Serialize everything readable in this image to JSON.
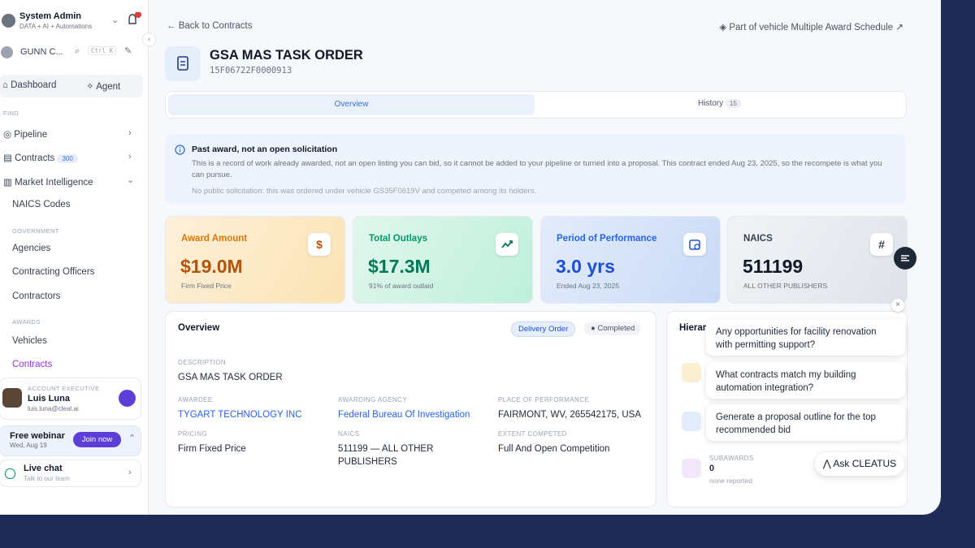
{
  "sidebar": {
    "user": {
      "name": "System Admin",
      "subtitle": "DATA + AI + Automations"
    },
    "org": {
      "name": "GUNN C...",
      "shortcut": "Ctrl K"
    },
    "tabs": [
      "Dashboard",
      "Agent"
    ],
    "find_label": "FIND",
    "nav": [
      {
        "label": "Pipeline"
      },
      {
        "label": "Contracts",
        "badge": "300"
      },
      {
        "label": "Market Intelligence"
      },
      {
        "label": "NAICS Codes"
      }
    ],
    "government_label": "GOVERNMENT",
    "government": [
      "Agencies",
      "Contracting Officers",
      "Contractors"
    ],
    "awards_label": "AWARDS",
    "awards": [
      "Vehicles",
      "Contracts"
    ],
    "executive": {
      "label": "ACCOUNT EXECUTIVE",
      "name": "Luis Luna",
      "email": "luis.luna@cleat.ai"
    },
    "webinar": {
      "title": "Free webinar",
      "date": "Wed, Aug 19",
      "button": "Join now"
    },
    "chat": {
      "title": "Live chat",
      "subtitle": "Talk to our team"
    }
  },
  "header": {
    "back": "Back to Contracts",
    "vehicle_link": "Part of vehicle Multiple Award Schedule",
    "title": "GSA MAS TASK ORDER",
    "id": "15F06722F0000913"
  },
  "tabs": [
    {
      "label": "Overview"
    },
    {
      "label": "History",
      "count": "15"
    }
  ],
  "notice": {
    "title": "Past award, not an open solicitation",
    "body": "This is a record of work already awarded, not an open listing you can bid, so it cannot be added to your pipeline or turned into a proposal. This contract ended Aug 23, 2025, so the recompete is what you can pursue.",
    "note": "No public solicitation: this was ordered under vehicle GS35F0619V and competed among its holders."
  },
  "stats": [
    {
      "label": "Award Amount",
      "value": "$19.0M",
      "sub": "Firm Fixed Price",
      "icon": "$"
    },
    {
      "label": "Total Outlays",
      "value": "$17.3M",
      "sub": "91% of award outlaid"
    },
    {
      "label": "Period of Performance",
      "value": "3.0 yrs",
      "sub": "Ended Aug 23, 2025"
    },
    {
      "label": "NAICS",
      "value": "511199",
      "sub": "ALL OTHER PUBLISHERS",
      "icon": "#"
    }
  ],
  "overview": {
    "title": "Overview",
    "badges": [
      "Delivery Order",
      "Completed"
    ],
    "fields": [
      {
        "label": "DESCRIPTION",
        "value": "GSA MAS TASK ORDER"
      },
      {
        "label": "AWARDEE",
        "value": "TYGART TECHNOLOGY INC"
      },
      {
        "label": "AWARDING AGENCY",
        "value": "Federal Bureau Of Investigation"
      },
      {
        "label": "PLACE OF PERFORMANCE",
        "value": "FAIRMONT, WV, 265542175, USA"
      },
      {
        "label": "PRICING",
        "value": "Firm Fixed Price"
      },
      {
        "label": "NAICS",
        "value": "511199 — ALL OTHER PUBLISHERS"
      },
      {
        "label": "EXTENT COMPETED",
        "value": "Full And Open Competition"
      }
    ]
  },
  "hierarchy": {
    "title": "Hierarchy",
    "subawards_label": "SUBAWARDS",
    "subawards_value": "0",
    "subawards_note": "none reported"
  },
  "suggestions": [
    "Any opportunities for facility renovation with permitting support?",
    "What contracts match my building automation integration?",
    "Generate a proposal outline for the top recommended bid"
  ],
  "ask_button": "Ask CLEATUS"
}
